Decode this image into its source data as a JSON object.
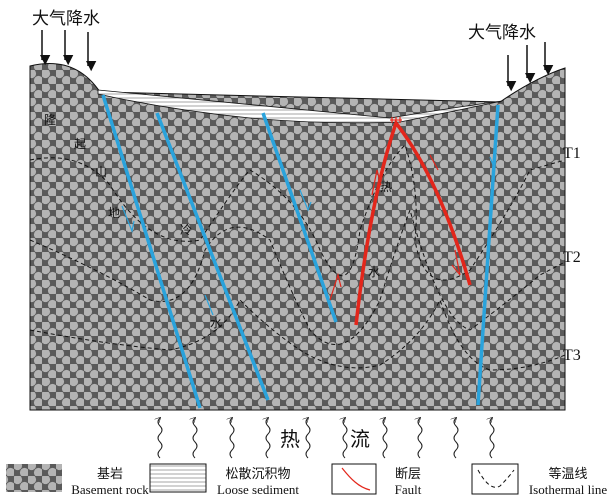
{
  "precipitation": [
    "大气降水",
    "大气降水"
  ],
  "uplift_label": [
    "隆",
    "起",
    "山",
    "地"
  ],
  "cold_water": [
    "冷",
    "水"
  ],
  "hot_water": [
    "热",
    "水"
  ],
  "isotherms": [
    "T1",
    "T2",
    "T3"
  ],
  "heat_flow": [
    "热",
    "流"
  ],
  "legend": [
    {
      "zh": "基岩",
      "en": "Basement rock"
    },
    {
      "zh": "松散沉积物",
      "en": "Loose sediment"
    },
    {
      "zh": "断层",
      "en": "Fault"
    },
    {
      "zh": "等温线",
      "en": "Isothermal line"
    }
  ]
}
